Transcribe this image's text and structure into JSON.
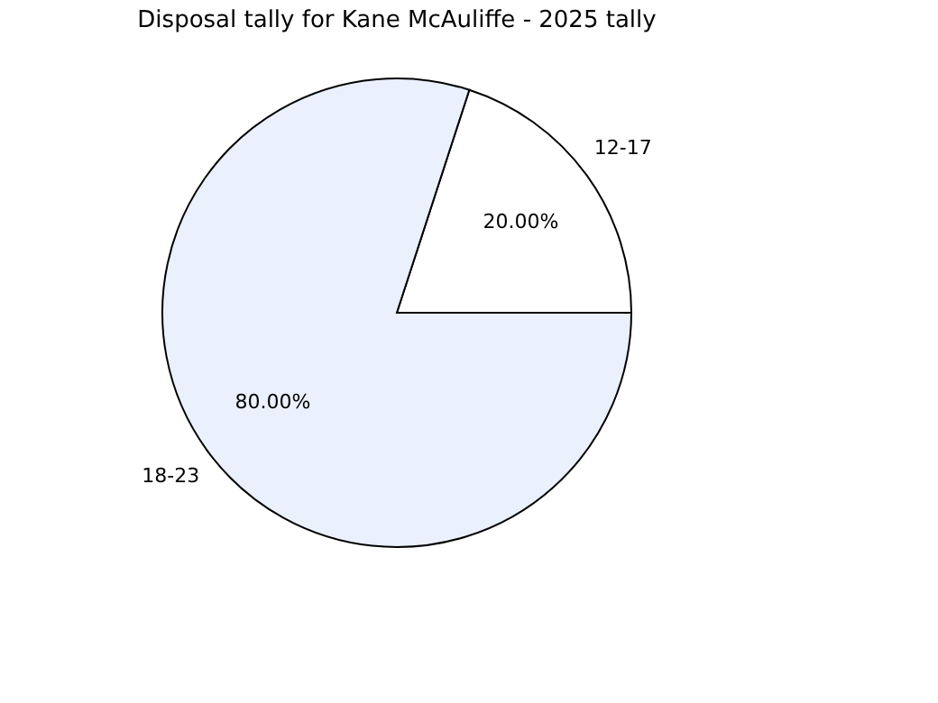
{
  "chart_data": {
    "type": "pie",
    "title": "Disposal tally for Kane McAuliffe - 2025 tally",
    "categories": [
      "12-17",
      "18-23"
    ],
    "values": [
      20,
      80
    ],
    "colors": [
      "#ffffff",
      "#eaf0fc"
    ],
    "value_labels": [
      "20.00%",
      "80.00%"
    ],
    "legend": false
  }
}
